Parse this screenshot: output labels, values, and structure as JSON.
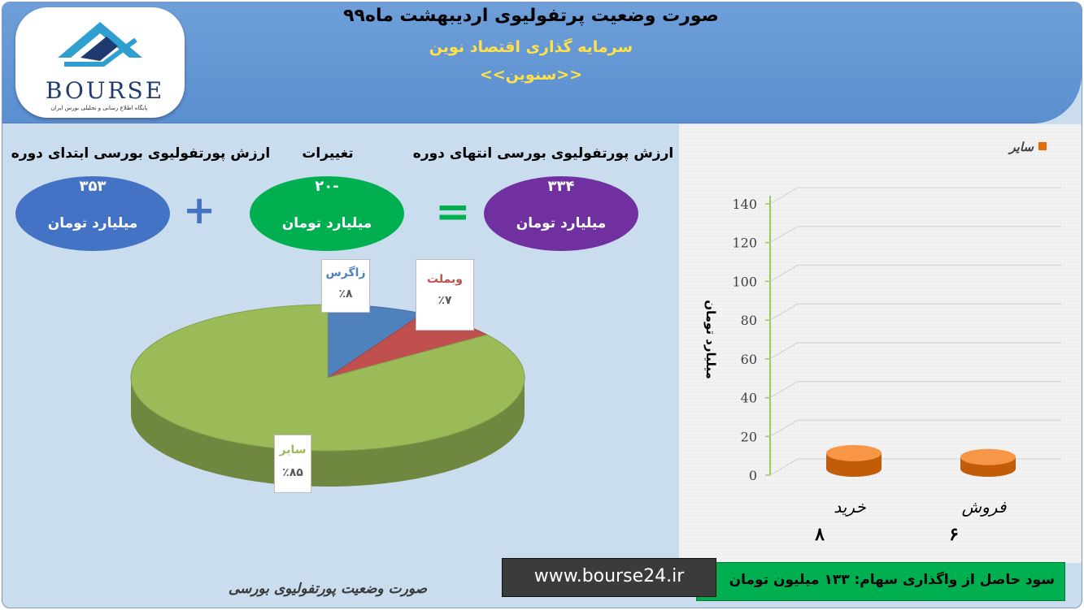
{
  "header": {
    "title": "صورت وضعیت پرتفولیوی اردیبهشت ماه۹۹",
    "subtitle": "سرمایه گذاری اقتصاد نوین",
    "subtitle2": "<<سنوین>>"
  },
  "logo": {
    "word": "BOURSE",
    "subtext": "پایگاه اطلاع رسانی و تحلیلی بورس ایران"
  },
  "summary": {
    "start": {
      "label": "ارزش پورتفولیوی بورسی ابتدای دوره",
      "value": "۳۵۳",
      "unit": "میلیارد تومان",
      "color": "#4472c4"
    },
    "change": {
      "label": "تغییرات",
      "value": "-۲۰",
      "unit": "میلیارد تومان",
      "color": "#00b050"
    },
    "end": {
      "label": "ارزش پورتفولیوی بورسی انتهای دوره",
      "value": "۳۳۴",
      "unit": "میلیارد تومان",
      "color": "#7030a0"
    },
    "plus": "+",
    "equals": "="
  },
  "chart_data": [
    {
      "type": "pie",
      "slices": [
        {
          "name": "زاگرس",
          "value": 8,
          "label": "٪۸",
          "color": "#4f81bd"
        },
        {
          "name": "وبملت",
          "value": 7,
          "label": "٪۷",
          "color": "#c0504d"
        },
        {
          "name": "سایر",
          "value": 85,
          "label": "٪۸۵",
          "color": "#9bbb59"
        }
      ]
    },
    {
      "type": "bar",
      "legend": "سایر",
      "legend_position": "top-right",
      "categories": [
        "خرید",
        "فروش"
      ],
      "values": [
        8,
        6
      ],
      "value_labels": [
        "۸",
        "۶"
      ],
      "ylabel": "میلیارد تومان",
      "ylim": [
        0,
        140
      ],
      "yticks": [
        "140",
        "120",
        "100",
        "80",
        "60",
        "40",
        "20",
        "0"
      ],
      "color": "#e46c0a"
    }
  ],
  "footer": {
    "profit": "سود حاصل از واگذاری سهام: ۱۳۳ میلیون تومان",
    "url": "www.bourse24.ir",
    "caption": "صورت وضعیت پورتفولیوی بورسی"
  }
}
